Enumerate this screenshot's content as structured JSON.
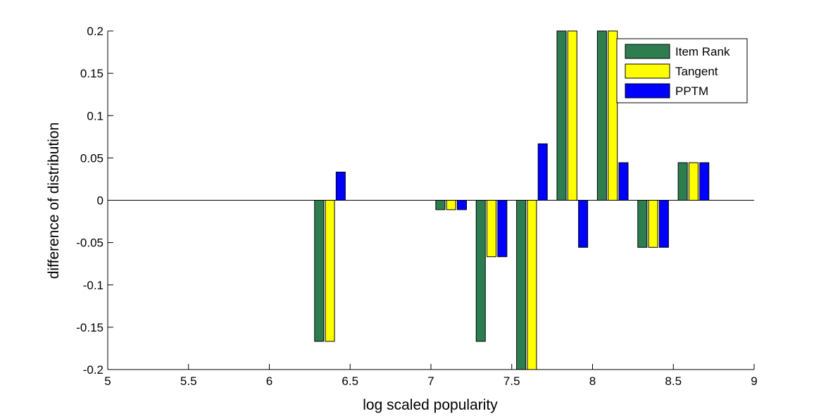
{
  "chart_data": {
    "type": "bar",
    "xlabel": "log scaled popularity",
    "ylabel": "difference of distribution",
    "xlim": [
      5,
      9
    ],
    "ylim": [
      -0.2,
      0.2
    ],
    "xticks": [
      "5",
      "5.5",
      "6",
      "6.5",
      "7",
      "7.5",
      "8",
      "8.5",
      "9"
    ],
    "yticks": [
      "-0.2",
      "-0.15",
      "-0.1",
      "-0.05",
      "0",
      "0.05",
      "0.1",
      "0.15",
      "0.2"
    ],
    "x": [
      6.375,
      7.125,
      7.375,
      7.625,
      7.875,
      8.125,
      8.375,
      8.625
    ],
    "series": [
      {
        "name": "Item Rank",
        "color": "#2e7d4f",
        "values": [
          -0.1667,
          -0.0111,
          -0.1667,
          -0.2,
          0.2,
          0.2,
          -0.0556,
          0.0444
        ]
      },
      {
        "name": "Tangent",
        "color": "#ffff00",
        "values": [
          -0.1667,
          -0.0111,
          -0.0667,
          -0.2,
          0.2,
          0.2,
          -0.0556,
          0.0444
        ]
      },
      {
        "name": "PPTM",
        "color": "#0000ff",
        "values": [
          0.0333,
          -0.0111,
          -0.0667,
          0.0667,
          -0.0556,
          0.0444,
          -0.0556,
          0.0444
        ]
      }
    ],
    "legend_position": "top-right",
    "grid": false
  }
}
